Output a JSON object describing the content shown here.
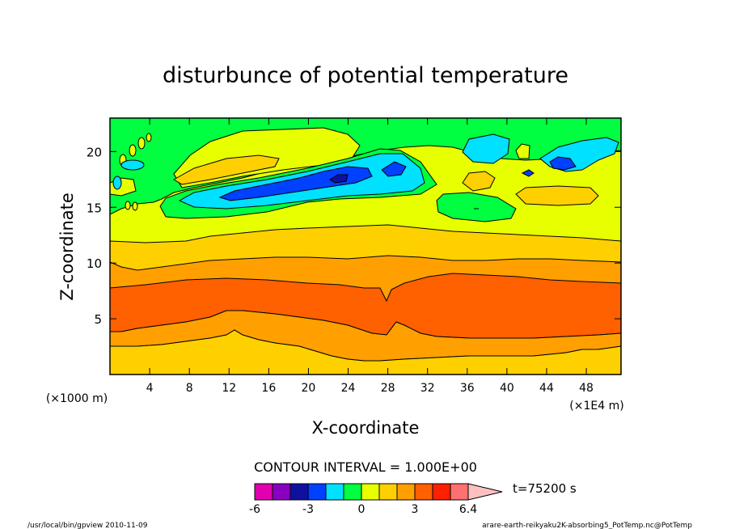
{
  "chart_data": {
    "type": "heatmap",
    "title": "disturbunce of potential temperature",
    "xlabel": "X-coordinate",
    "ylabel": "Z-coordinate",
    "x_unit": "(×1E4 m)",
    "y_unit": "(×1000 m)",
    "xlim": [
      0,
      51.5
    ],
    "ylim": [
      0,
      23
    ],
    "x_ticks": [
      "4",
      "8",
      "12",
      "16",
      "20",
      "24",
      "28",
      "32",
      "36",
      "40",
      "44",
      "48"
    ],
    "y_ticks": [
      "5",
      "10",
      "15",
      "20"
    ],
    "x_tick_values": [
      4,
      8,
      12,
      16,
      20,
      24,
      28,
      32,
      36,
      40,
      44,
      48
    ],
    "y_tick_values": [
      5,
      10,
      15,
      20
    ],
    "contour_interval": "CONTOUR INTERVAL = 1.000E+00",
    "time_label": "t=75200 s",
    "colorbar": {
      "colors": [
        "#e000b0",
        "#8a00c0",
        "#1010a0",
        "#0040ff",
        "#00e0ff",
        "#00ff40",
        "#e8ff00",
        "#ffd000",
        "#ffa000",
        "#ff6000",
        "#ff2000",
        "#ff7070",
        "#ffc0c0"
      ],
      "labels": [
        "-6",
        "-3",
        "0",
        "3",
        "6.4"
      ],
      "label_values": [
        -6,
        -3,
        0,
        3,
        6.4
      ]
    },
    "levels": {
      "bands_bottom_up": [
        {
          "range": "0 to 1",
          "color": "#e8ff00"
        },
        {
          "range": "1 to 2",
          "color": "#ffd000"
        },
        {
          "range": "2 to 3",
          "color": "#ffa000"
        },
        {
          "range": "3 to 4",
          "color": "#ff6000"
        }
      ]
    }
  },
  "footer": {
    "left": "/usr/local/bin/gpview  2010-11-09",
    "right": "arare-earth-reikyaku2K-absorbing5_PotTemp.nc@PotTemp"
  }
}
